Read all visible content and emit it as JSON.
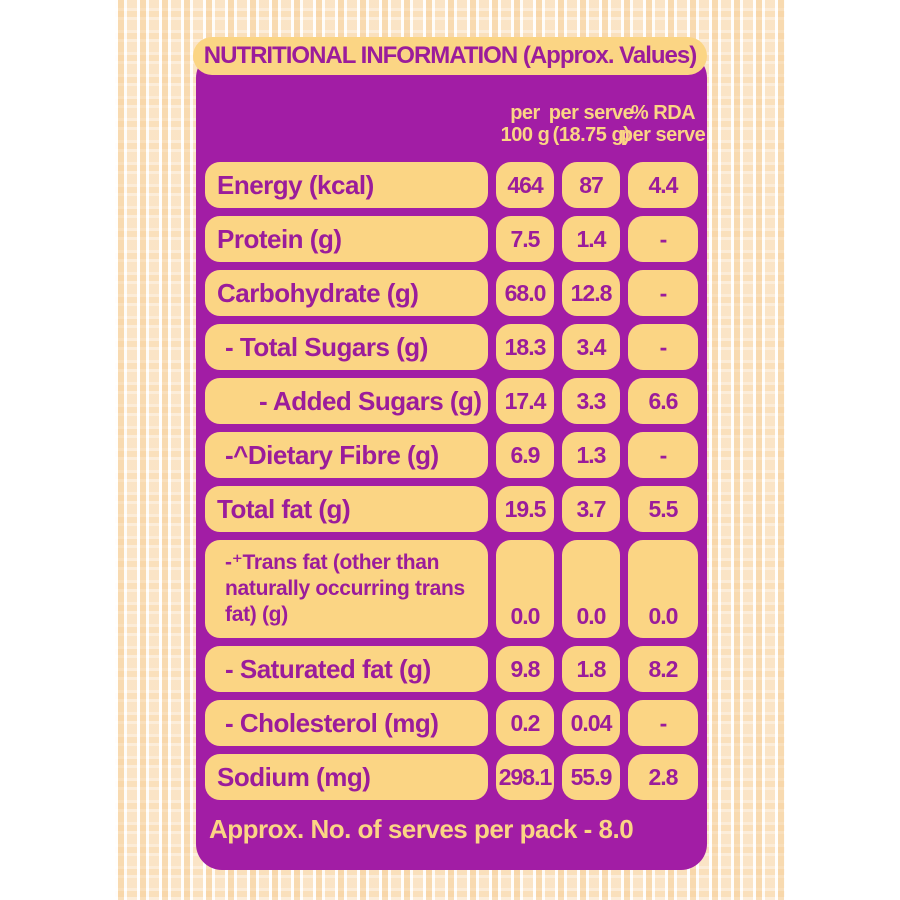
{
  "panel": {
    "title": "NUTRITIONAL INFORMATION (Approx. Values)",
    "columns": [
      {
        "line1": "per",
        "line2": "100 g"
      },
      {
        "line1": "per serve",
        "line2": "(18.75 g)"
      },
      {
        "line1": "% RDA",
        "line2": "per serve"
      }
    ],
    "rows": [
      {
        "label": "Energy (kcal)",
        "indent": 0,
        "per_100g": "464",
        "per_serve": "87",
        "rda_per_serve": "4.4"
      },
      {
        "label": "Protein (g)",
        "indent": 0,
        "per_100g": "7.5",
        "per_serve": "1.4",
        "rda_per_serve": "-"
      },
      {
        "label": "Carbohydrate (g)",
        "indent": 0,
        "per_100g": "68.0",
        "per_serve": "12.8",
        "rda_per_serve": "-"
      },
      {
        "label": "- Total Sugars (g)",
        "indent": 1,
        "per_100g": "18.3",
        "per_serve": "3.4",
        "rda_per_serve": "-"
      },
      {
        "label": "- Added Sugars (g)",
        "indent": 2,
        "per_100g": "17.4",
        "per_serve": "3.3",
        "rda_per_serve": "6.6"
      },
      {
        "label": "-^Dietary Fibre (g)",
        "indent": 1,
        "per_100g": "6.9",
        "per_serve": "1.3",
        "rda_per_serve": "-"
      },
      {
        "label": "Total fat (g)",
        "indent": 0,
        "per_100g": "19.5",
        "per_serve": "3.7",
        "rda_per_serve": "5.5"
      },
      {
        "label": "-⁺Trans fat (other than naturally occurring trans fat) (g)",
        "indent": 1,
        "per_100g": "0.0",
        "per_serve": "0.0",
        "rda_per_serve": "0.0"
      },
      {
        "label": "- Saturated fat (g)",
        "indent": 1,
        "per_100g": "9.8",
        "per_serve": "1.8",
        "rda_per_serve": "8.2"
      },
      {
        "label": "- Cholesterol (mg)",
        "indent": 1,
        "per_100g": "0.2",
        "per_serve": "0.04",
        "rda_per_serve": "-"
      },
      {
        "label": "Sodium (mg)",
        "indent": 0,
        "per_100g": "298.1",
        "per_serve": "55.9",
        "rda_per_serve": "2.8"
      }
    ],
    "footer": "Approx. No. of serves per pack - 8.0"
  },
  "colors": {
    "panel_purple": "#A21DA5",
    "cell_yellow": "#FBD584",
    "text_purple": "#9B1C9B",
    "burlap_peach": "#FCEDD8"
  }
}
